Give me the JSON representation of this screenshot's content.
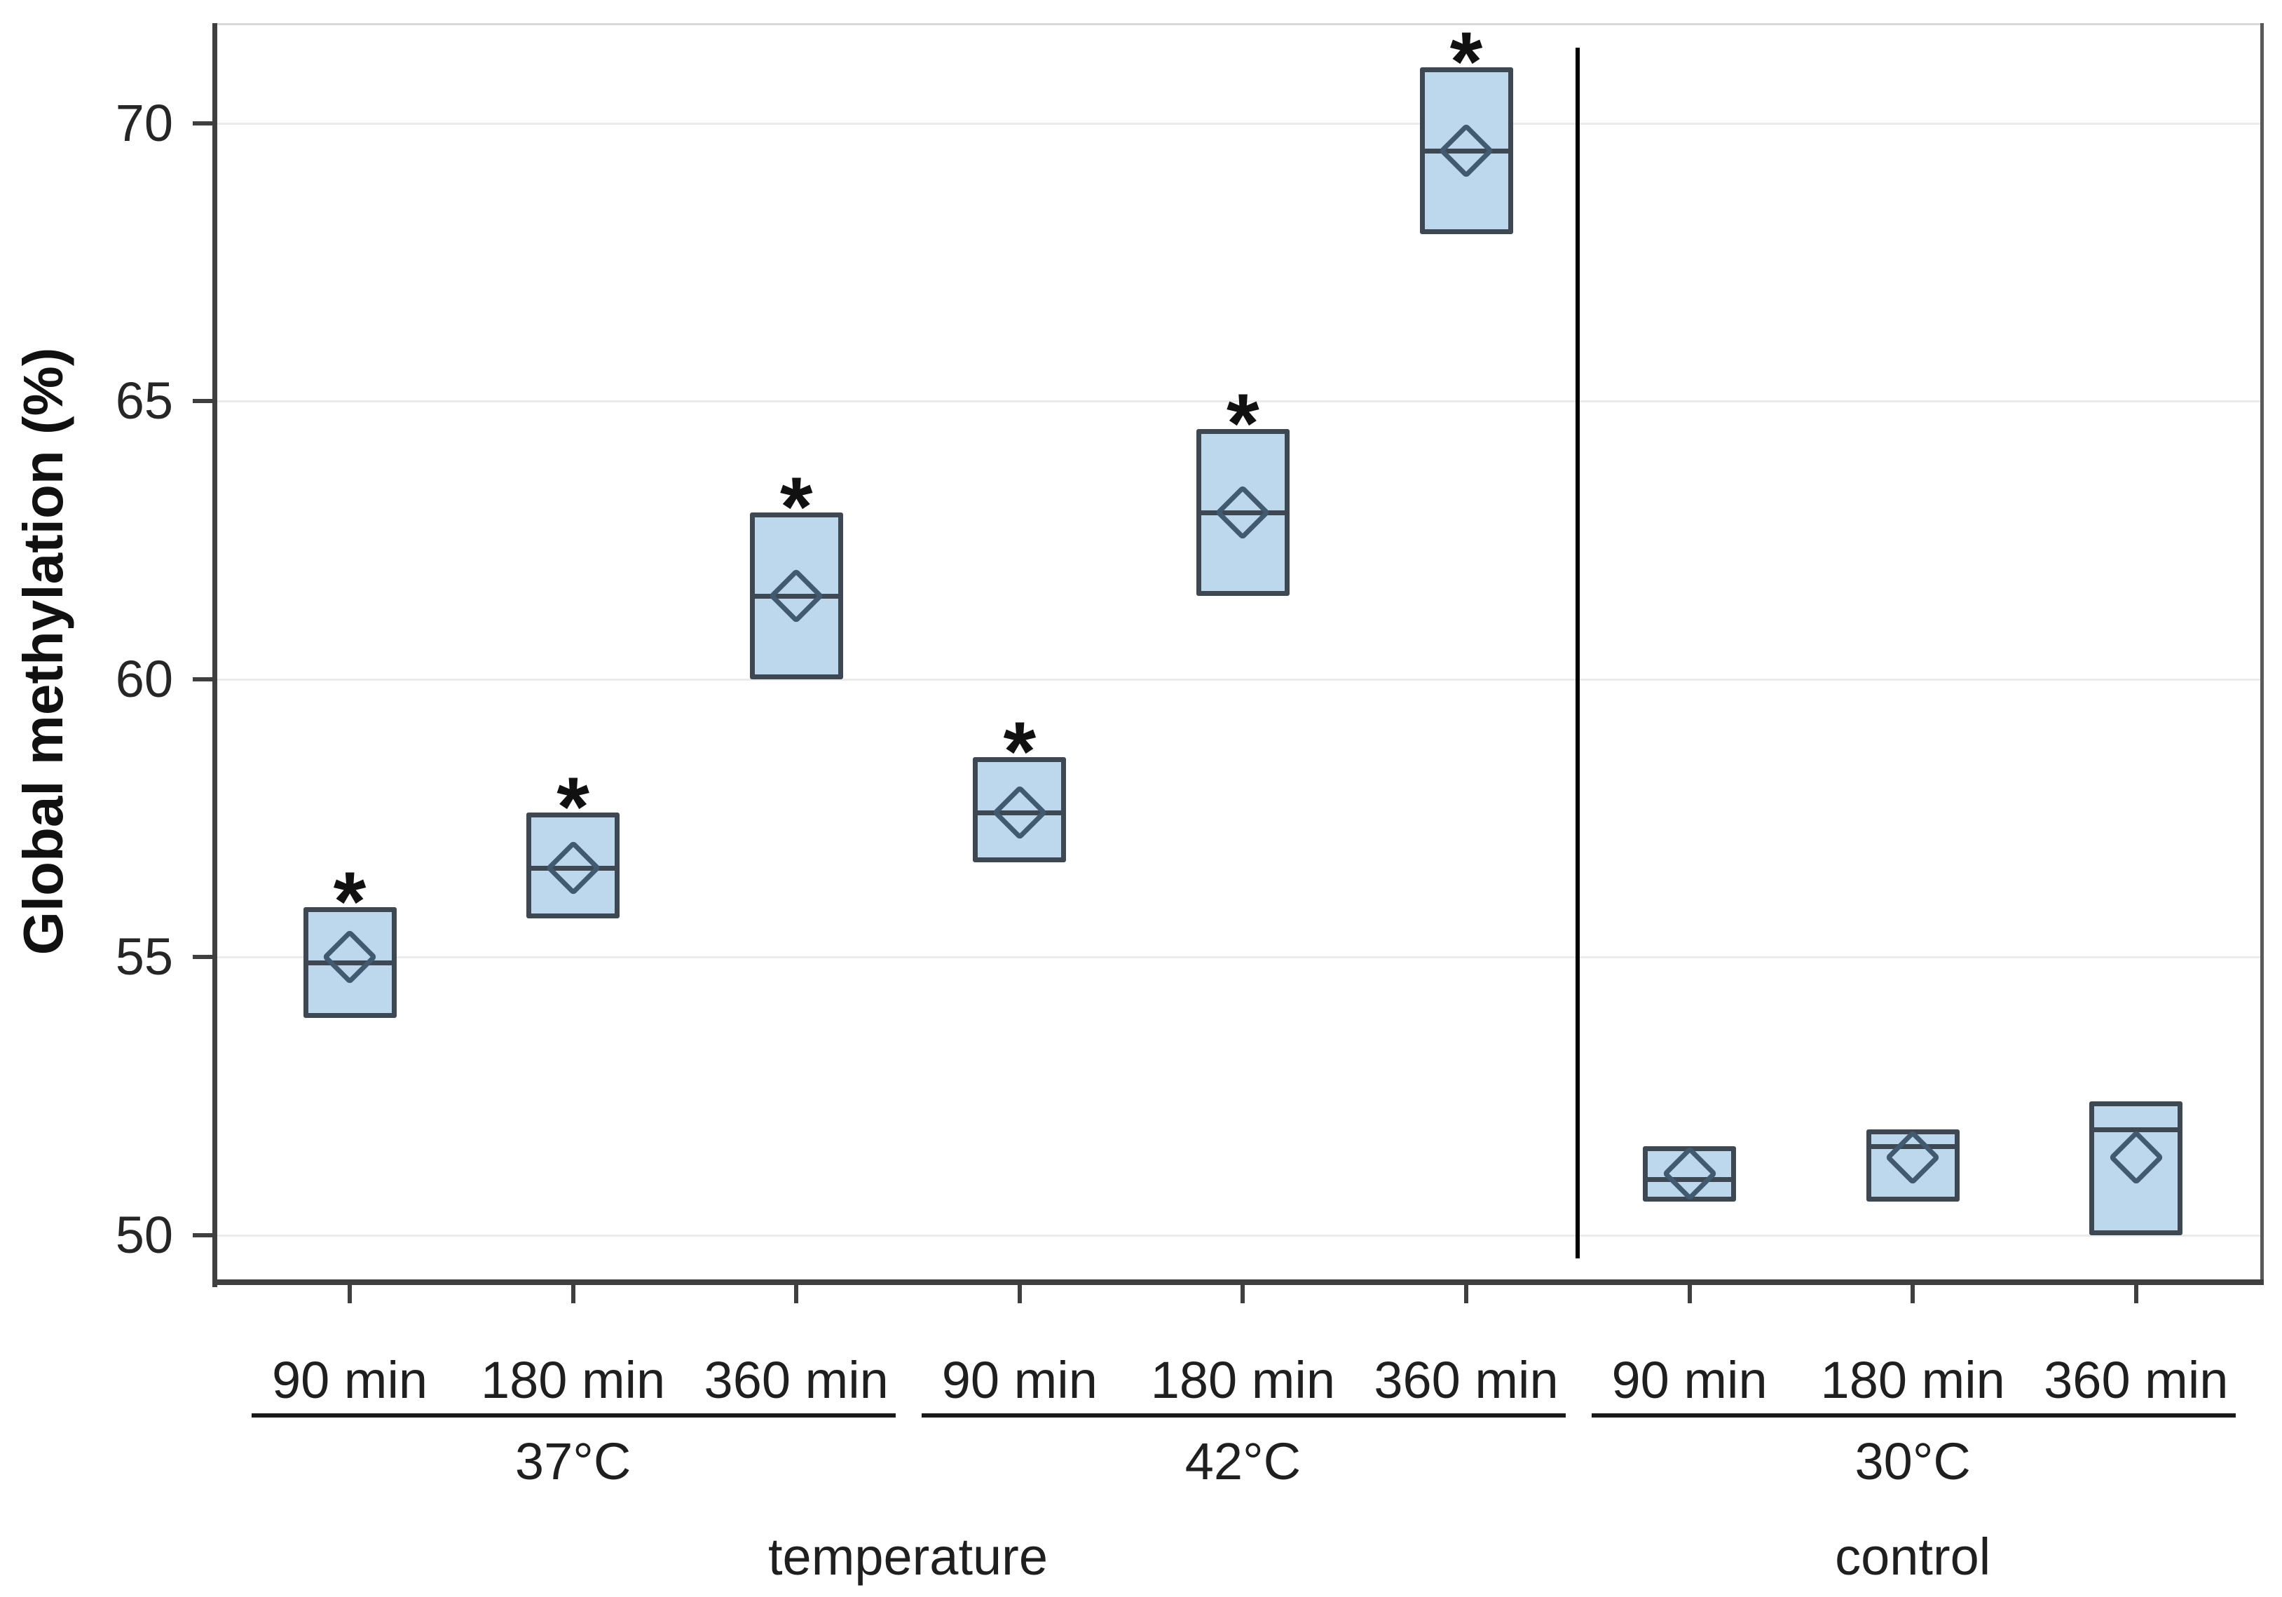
{
  "chart_data": {
    "type": "box",
    "ylabel": "Global methylation (%)",
    "yticks": [
      50,
      55,
      60,
      65,
      70
    ],
    "ytick_labels": [
      "50",
      "55",
      "60",
      "65",
      "70"
    ],
    "ylim": [
      49.2,
      71.8
    ],
    "grid": "horizontal",
    "significance_marker": "*",
    "sections": [
      {
        "label": "temperature",
        "groups": [
          {
            "label": "37°C",
            "boxes": [
              {
                "category": "90 min",
                "q1": 53.9,
                "median": 54.9,
                "q3": 55.9,
                "mean": 55.0,
                "significant": true
              },
              {
                "category": "180 min",
                "q1": 55.7,
                "median": 56.6,
                "q3": 57.6,
                "mean": 56.6,
                "significant": true
              },
              {
                "category": "360 min",
                "q1": 60.0,
                "median": 61.5,
                "q3": 63.0,
                "mean": 61.5,
                "significant": true
              }
            ]
          },
          {
            "label": "42°C",
            "boxes": [
              {
                "category": "90 min",
                "q1": 56.7,
                "median": 57.6,
                "q3": 58.6,
                "mean": 57.6,
                "significant": true
              },
              {
                "category": "180 min",
                "q1": 61.5,
                "median": 63.0,
                "q3": 64.5,
                "mean": 63.0,
                "significant": true
              },
              {
                "category": "360 min",
                "q1": 68.0,
                "median": 69.5,
                "q3": 71.0,
                "mean": 69.5,
                "significant": true
              }
            ]
          }
        ]
      },
      {
        "label": "control",
        "groups": [
          {
            "label": "30°C",
            "boxes": [
              {
                "category": "90 min",
                "q1": 50.6,
                "median": 51.0,
                "q3": 51.6,
                "mean": 51.1,
                "significant": false
              },
              {
                "category": "180 min",
                "q1": 50.6,
                "median": 51.6,
                "q3": 51.9,
                "mean": 51.4,
                "significant": false
              },
              {
                "category": "360 min",
                "q1": 50.0,
                "median": 51.9,
                "q3": 52.4,
                "mean": 51.4,
                "significant": false
              }
            ]
          }
        ]
      }
    ],
    "colors": {
      "box_fill": "#bdd7ec",
      "box_border": "#3d4852",
      "median_line": "#3d4852",
      "mean_marker": "#415a70",
      "gridline": "#ebebeb",
      "axis": "#3f3f3f",
      "text": "#1f1f1f",
      "divider": "#000000",
      "significance": "#111111",
      "plot_border_top": "#d9d9d9",
      "plot_border_right": "#595959"
    }
  }
}
